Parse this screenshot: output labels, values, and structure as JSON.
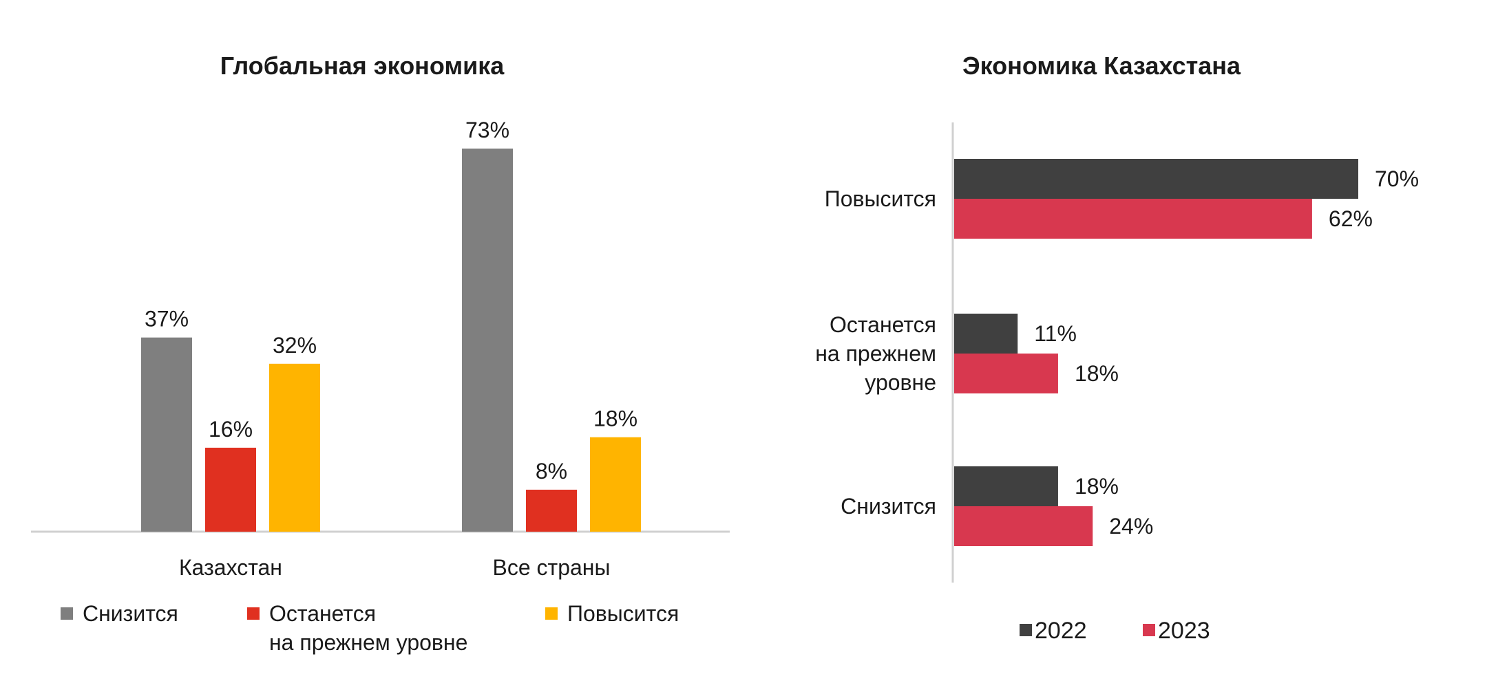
{
  "chart_data": [
    {
      "type": "bar",
      "title": "Глобальная экономика",
      "categories": [
        "Казахстан",
        "Все страны"
      ],
      "series": [
        {
          "name": "Снизится",
          "values": [
            37,
            73
          ],
          "labels": [
            "37%",
            "73%"
          ],
          "color": "#7f7f7f"
        },
        {
          "name": "Останется на прежнем уровне",
          "values": [
            16,
            8
          ],
          "labels": [
            "16%",
            "8%"
          ],
          "color": "#e03020"
        },
        {
          "name": "Повысится",
          "values": [
            32,
            18
          ],
          "labels": [
            "32%",
            "18%"
          ],
          "color": "#ffb400"
        }
      ],
      "legend": [
        {
          "lines": [
            "Снизится"
          ]
        },
        {
          "lines": [
            "Останется",
            "на прежнем уровне"
          ]
        },
        {
          "lines": [
            "Повысится"
          ]
        }
      ],
      "legend_position": "bottom",
      "xlabel": "",
      "ylabel": "",
      "ylim": [
        0,
        80
      ],
      "grid": false
    },
    {
      "type": "bar",
      "orientation": "horizontal",
      "title": "Экономика Казахстана",
      "categories": [
        {
          "lines": [
            "Повысится"
          ]
        },
        {
          "lines": [
            "Останется",
            "на прежнем",
            "уровне"
          ]
        },
        {
          "lines": [
            "Снизится"
          ]
        }
      ],
      "series": [
        {
          "name": "2022",
          "values": [
            70,
            11,
            18
          ],
          "labels": [
            "70%",
            "11%",
            "18%"
          ],
          "color": "#404040"
        },
        {
          "name": "2023",
          "values": [
            62,
            18,
            24
          ],
          "labels": [
            "62%",
            "18%",
            "24%"
          ],
          "color": "#d8384f"
        }
      ],
      "legend_position": "bottom",
      "xlabel": "",
      "ylabel": "",
      "xlim": [
        0,
        80
      ],
      "grid": false
    }
  ]
}
